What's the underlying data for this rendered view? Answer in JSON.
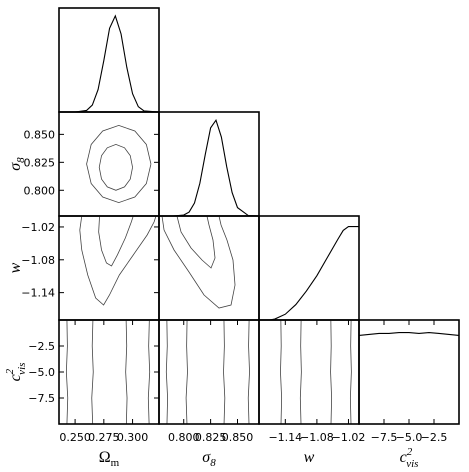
{
  "chart_data": [
    {
      "type": "line",
      "xlim": [
        0.236,
        0.323
      ],
      "ylim": [
        0,
        1.08
      ],
      "color": "#000000",
      "x": [
        0.236,
        0.25,
        0.26,
        0.265,
        0.27,
        0.275,
        0.28,
        0.285,
        0.29,
        0.295,
        0.3,
        0.305,
        0.31,
        0.323
      ],
      "values": [
        0,
        0,
        0.016,
        0.072,
        0.233,
        0.535,
        0.869,
        0.998,
        0.81,
        0.463,
        0.19,
        0.055,
        0.011,
        0
      ]
    },
    {
      "type": "contour",
      "xlim": [
        0.236,
        0.323
      ],
      "ylim": [
        0.777,
        0.87
      ],
      "color": "#444444",
      "yticks": [
        {
          "value": 0.8,
          "label": "0.800"
        },
        0.825,
        {
          "value": 0.85,
          "label": "0.850"
        }
      ],
      "ylabel": "σ",
      "ylabel_sub": "8",
      "contours": [
        {
          "x": [
            0.316,
            0.312,
            0.302,
            0.288,
            0.274,
            0.264,
            0.26,
            0.264,
            0.274,
            0.288,
            0.302,
            0.312,
            0.316
          ],
          "y": [
            0.8235,
            0.841,
            0.853,
            0.858,
            0.853,
            0.841,
            0.8235,
            0.806,
            0.794,
            0.789,
            0.794,
            0.806,
            0.8235
          ]
        },
        {
          "x": [
            0.3,
            0.298,
            0.293,
            0.2855,
            0.278,
            0.273,
            0.271,
            0.273,
            0.278,
            0.2855,
            0.293,
            0.298,
            0.3
          ],
          "y": [
            0.8205,
            0.831,
            0.838,
            0.841,
            0.838,
            0.831,
            0.8205,
            0.81,
            0.803,
            0.8,
            0.803,
            0.81,
            0.8205
          ]
        }
      ]
    },
    {
      "type": "line",
      "xlim": [
        0.777,
        0.87
      ],
      "ylim": [
        0,
        1.08
      ],
      "color": "#000000",
      "x": [
        0.777,
        0.79,
        0.8,
        0.805,
        0.81,
        0.815,
        0.82,
        0.825,
        0.83,
        0.835,
        0.84,
        0.845,
        0.85,
        0.86,
        0.87
      ],
      "values": [
        0,
        0,
        0.01,
        0.041,
        0.135,
        0.34,
        0.637,
        0.915,
        0.995,
        0.82,
        0.51,
        0.243,
        0.087,
        0.005,
        0
      ]
    },
    {
      "type": "contour",
      "xlim": [
        0.236,
        0.323
      ],
      "ylim": [
        -1.19,
        -1.0
      ],
      "color": "#444444",
      "yticks": [
        {
          "value": -1.14,
          "label": "−1.14"
        },
        {
          "value": -1.08,
          "label": "−1.08"
        },
        {
          "value": -1.02,
          "label": "−1.02"
        }
      ],
      "ylabel": "w",
      "contours": [
        {
          "x": [
            0.2558,
            0.2541,
            0.2558,
            0.261,
            0.2679,
            0.2748,
            0.2799,
            0.2885,
            0.3006,
            0.3127,
            0.3187,
            0.3204
          ],
          "y": [
            -1.0,
            -1.0256,
            -1.0621,
            -1.1078,
            -1.1498,
            -1.1626,
            -1.1443,
            -1.1078,
            -1.0712,
            -1.0347,
            -1.011,
            -1.0
          ]
        },
        {
          "x": [
            0.2713,
            0.2705,
            0.273,
            0.2773,
            0.2817,
            0.2868,
            0.2937,
            0.2989,
            0.3006
          ],
          "y": [
            -1.0,
            -1.0292,
            -1.0621,
            -1.0859,
            -1.0913,
            -1.0712,
            -1.0402,
            -1.011,
            -1.0
          ]
        }
      ]
    },
    {
      "type": "contour",
      "xlim": [
        0.777,
        0.87
      ],
      "ylim": [
        -1.19,
        -1.0
      ],
      "color": "#444444",
      "contours": [
        {
          "x": [
            0.7798,
            0.7817,
            0.791,
            0.8049,
            0.8189,
            0.8328,
            0.844,
            0.8477,
            0.8458,
            0.8402,
            0.8347,
            0.8328
          ],
          "y": [
            -1.0,
            -1.0256,
            -1.0621,
            -1.1023,
            -1.1443,
            -1.1681,
            -1.1626,
            -1.1261,
            -1.0804,
            -1.0438,
            -1.0164,
            -1.0
          ]
        },
        {
          "x": [
            0.7937,
            0.7975,
            0.8068,
            0.817,
            0.8254,
            0.8291,
            0.8272,
            0.8235,
            0.8216
          ],
          "y": [
            -1.0,
            -1.0292,
            -1.0585,
            -1.0804,
            -1.095,
            -1.0767,
            -1.0438,
            -1.0164,
            -1.0
          ]
        }
      ]
    },
    {
      "type": "line",
      "xlim": [
        -1.19,
        -1.0
      ],
      "ylim": [
        0,
        1.08
      ],
      "color": "#000000",
      "x": [
        -1.19,
        -1.17,
        -1.16,
        -1.14,
        -1.12,
        -1.1,
        -1.08,
        -1.06,
        -1.04,
        -1.03,
        -1.02,
        -1.0
      ],
      "values": [
        0,
        0,
        0.01,
        0.06,
        0.16,
        0.3,
        0.46,
        0.65,
        0.84,
        0.93,
        0.97,
        0.97
      ]
    },
    {
      "type": "contour",
      "xlim": [
        0.236,
        0.323
      ],
      "ylim": [
        -10,
        0
      ],
      "color": "#444444",
      "xticks": [
        {
          "value": 0.25,
          "label": "0.250"
        },
        0.275,
        {
          "value": 0.3,
          "label": "0.300"
        }
      ],
      "yticks": [
        {
          "value": -7.5,
          "label": "−7.5"
        },
        {
          "value": -5,
          "label": "−5.0"
        },
        {
          "value": -2.5,
          "label": "−2.5"
        }
      ],
      "xlabel": "Ω",
      "xlabel_sub": "m",
      "ylabel": "c",
      "ylabel_sup": "2",
      "ylabel_sub": "vis",
      "contours": [
        {
          "x": [
            0.2429,
            0.2436,
            0.2424,
            0.2433,
            0.2429
          ],
          "y": [
            -10,
            -7.5,
            -5,
            -2.5,
            0
          ]
        },
        {
          "x": [
            0.2653,
            0.2645,
            0.2658,
            0.2649,
            0.2655
          ],
          "y": [
            -10,
            -7.5,
            -5,
            -2.5,
            0
          ]
        },
        {
          "x": [
            0.2946,
            0.2952,
            0.294,
            0.2949,
            0.2944
          ],
          "y": [
            -10,
            -7.5,
            -5,
            -2.5,
            0
          ]
        },
        {
          "x": [
            0.3144,
            0.3137,
            0.3149,
            0.314,
            0.3146
          ],
          "y": [
            -10,
            -7.5,
            -5,
            -2.5,
            0
          ]
        }
      ]
    },
    {
      "type": "contour",
      "xlim": [
        0.777,
        0.87
      ],
      "ylim": [
        -10,
        0
      ],
      "color": "#444444",
      "xticks": [
        {
          "value": 0.8,
          "label": "0.800"
        },
        0.825,
        {
          "value": 0.85,
          "label": "0.850"
        }
      ],
      "xlabel": "σ",
      "xlabel_sub": "8",
      "contours": [
        {
          "x": [
            0.7844,
            0.785,
            0.7838,
            0.7847,
            0.7843
          ],
          "y": [
            -10,
            -7.5,
            -5,
            -2.5,
            0
          ]
        },
        {
          "x": [
            0.803,
            0.8022,
            0.8035,
            0.8027,
            0.8031
          ],
          "y": [
            -10,
            -7.5,
            -5,
            -2.5,
            0
          ]
        },
        {
          "x": [
            0.8375,
            0.8382,
            0.837,
            0.8378,
            0.8374
          ],
          "y": [
            -10,
            -7.5,
            -5,
            -2.5,
            0
          ]
        },
        {
          "x": [
            0.8607,
            0.86,
            0.8612,
            0.8603,
            0.8608
          ],
          "y": [
            -10,
            -7.5,
            -5,
            -2.5,
            0
          ]
        }
      ]
    },
    {
      "type": "contour",
      "xlim": [
        -1.19,
        -1.0
      ],
      "ylim": [
        -10,
        0
      ],
      "color": "#444444",
      "xticks": [
        {
          "value": -1.14,
          "label": "−1.14"
        },
        {
          "value": -1.08,
          "label": "−1.08"
        },
        {
          "value": -1.02,
          "label": "−1.02"
        }
      ],
      "xlabel": "w",
      "contours": [
        {
          "x": [
            -1.1482,
            -1.147,
            -1.1492,
            -1.1478,
            -1.1485
          ],
          "y": [
            -10,
            -7.5,
            -5,
            -2.5,
            0
          ]
        },
        {
          "x": [
            -1.1102,
            -1.1115,
            -1.1095,
            -1.1108,
            -1.11
          ],
          "y": [
            -10,
            -7.5,
            -5,
            -2.5,
            0
          ]
        },
        {
          "x": [
            -1.0532,
            -1.052,
            -1.054,
            -1.0528,
            -1.0535
          ],
          "y": [
            -10,
            -7.5,
            -5,
            -2.5,
            0
          ]
        },
        {
          "x": [
            -1.0152,
            -1.0164,
            -1.0145,
            -1.0158,
            -1.015
          ],
          "y": [
            -10,
            -7.5,
            -5,
            -2.5,
            0
          ]
        }
      ]
    },
    {
      "type": "line",
      "xlim": [
        -10,
        0
      ],
      "ylim": [
        0,
        1.08
      ],
      "color": "#000000",
      "xticks": [
        {
          "value": -7.5,
          "label": "−7.5"
        },
        {
          "value": -5,
          "label": "−5.0"
        },
        {
          "value": -2.5,
          "label": "−2.5"
        }
      ],
      "xlabel": "c",
      "xlabel_sup": "2",
      "xlabel_sub": "vis",
      "x": [
        -10,
        -9,
        -8,
        -7,
        -6,
        -5,
        -4,
        -3,
        -2,
        -1,
        0
      ],
      "values": [
        0.92,
        0.93,
        0.94,
        0.94,
        0.95,
        0.95,
        0.94,
        0.95,
        0.94,
        0.93,
        0.92
      ]
    }
  ]
}
